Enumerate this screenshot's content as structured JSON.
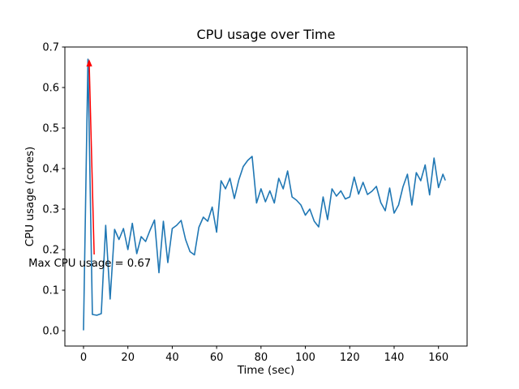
{
  "figure": {
    "background": "#ffffff"
  },
  "chart_data": {
    "type": "line",
    "title": "CPU usage over Time",
    "xlabel": "Time (sec)",
    "ylabel": "CPU usage (cores)",
    "grid": false,
    "legend": null,
    "line_color": "#1f77b4",
    "axis_color": "#000000",
    "xlim": [
      -8.4,
      172.9
    ],
    "ylim": [
      -0.038,
      0.7
    ],
    "xtick_values": [
      0,
      20,
      40,
      60,
      80,
      100,
      120,
      140,
      160
    ],
    "xtick_labels": [
      "0",
      "20",
      "40",
      "60",
      "80",
      "100",
      "120",
      "140",
      "160"
    ],
    "ytick_values": [
      0.0,
      0.1,
      0.2,
      0.3,
      0.4,
      0.5,
      0.6,
      0.7
    ],
    "ytick_labels": [
      "0.0",
      "0.1",
      "0.2",
      "0.3",
      "0.4",
      "0.5",
      "0.6",
      "0.7"
    ],
    "series": [
      {
        "x": [
          0,
          2,
          4,
          6,
          8,
          10,
          12,
          14,
          16,
          18,
          20,
          22,
          24,
          26,
          28,
          30,
          32,
          34,
          36,
          38,
          40,
          42,
          44,
          46,
          48,
          50,
          52,
          54,
          56,
          58,
          60,
          62,
          64,
          66,
          68,
          70,
          72,
          74,
          76,
          78,
          80,
          82,
          84,
          86,
          88,
          90,
          92,
          94,
          96,
          98,
          100,
          102,
          104,
          106,
          108,
          110,
          112,
          114,
          116,
          118,
          120,
          122,
          124,
          126,
          128,
          130,
          132,
          134,
          136,
          138,
          140,
          142,
          144,
          146,
          148,
          150,
          152,
          154,
          156,
          158,
          160,
          162,
          163
        ],
        "y": [
          0.002,
          0.67,
          0.04,
          0.038,
          0.042,
          0.26,
          0.078,
          0.25,
          0.225,
          0.252,
          0.2,
          0.265,
          0.19,
          0.232,
          0.22,
          0.248,
          0.273,
          0.143,
          0.27,
          0.168,
          0.252,
          0.26,
          0.272,
          0.225,
          0.195,
          0.187,
          0.255,
          0.28,
          0.27,
          0.305,
          0.243,
          0.37,
          0.35,
          0.376,
          0.326,
          0.372,
          0.405,
          0.42,
          0.43,
          0.315,
          0.35,
          0.318,
          0.345,
          0.315,
          0.376,
          0.35,
          0.394,
          0.33,
          0.322,
          0.31,
          0.285,
          0.3,
          0.27,
          0.256,
          0.33,
          0.274,
          0.35,
          0.332,
          0.345,
          0.325,
          0.33,
          0.379,
          0.337,
          0.366,
          0.336,
          0.344,
          0.356,
          0.316,
          0.296,
          0.352,
          0.29,
          0.31,
          0.355,
          0.386,
          0.31,
          0.39,
          0.37,
          0.409,
          0.335,
          0.426,
          0.353,
          0.386,
          0.372
        ]
      }
    ],
    "annotation": {
      "text": "Max CPU usage = 0.67",
      "color": "#ff0000",
      "xy": [
        2.6,
        0.652
      ],
      "arrow_start": [
        4.8,
        0.188
      ],
      "text_pos": [
        -24.8,
        0.158
      ],
      "max_value": "0.67"
    }
  }
}
